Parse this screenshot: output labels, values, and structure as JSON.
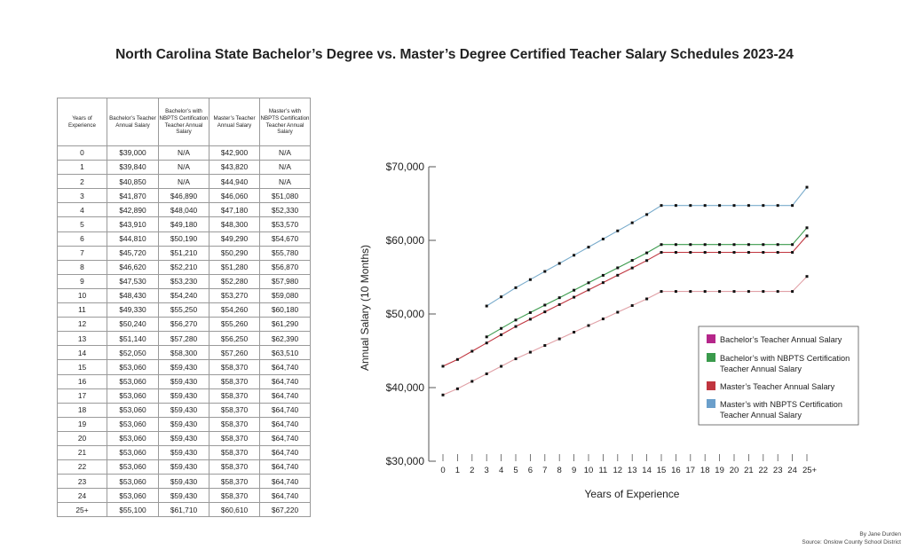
{
  "title": "North Carolina State Bachelor’s Degree vs.  Master’s Degree Certified Teacher Salary Schedules 2023-24",
  "table": {
    "headers": [
      "Years of Experience",
      "Bachelor’s Teacher Annual Salary",
      "Bachelor’s with NBPTS Certification Teacher Annual Salary",
      "Master’s Teacher Annual Salary",
      "Master’s with NBPTS Certification Teacher Annual Salary"
    ],
    "rows": [
      [
        "0",
        "$39,000",
        "N/A",
        "$42,900",
        "N/A"
      ],
      [
        "1",
        "$39,840",
        "N/A",
        "$43,820",
        "N/A"
      ],
      [
        "2",
        "$40,850",
        "N/A",
        "$44,940",
        "N/A"
      ],
      [
        "3",
        "$41,870",
        "$46,890",
        "$46,060",
        "$51,080"
      ],
      [
        "4",
        "$42,890",
        "$48,040",
        "$47,180",
        "$52,330"
      ],
      [
        "5",
        "$43,910",
        "$49,180",
        "$48,300",
        "$53,570"
      ],
      [
        "6",
        "$44,810",
        "$50,190",
        "$49,290",
        "$54,670"
      ],
      [
        "7",
        "$45,720",
        "$51,210",
        "$50,290",
        "$55,780"
      ],
      [
        "8",
        "$46,620",
        "$52,210",
        "$51,280",
        "$56,870"
      ],
      [
        "9",
        "$47,530",
        "$53,230",
        "$52,280",
        "$57,980"
      ],
      [
        "10",
        "$48,430",
        "$54,240",
        "$53,270",
        "$59,080"
      ],
      [
        "11",
        "$49,330",
        "$55,250",
        "$54,260",
        "$60,180"
      ],
      [
        "12",
        "$50,240",
        "$56,270",
        "$55,260",
        "$61,290"
      ],
      [
        "13",
        "$51,140",
        "$57,280",
        "$56,250",
        "$62,390"
      ],
      [
        "14",
        "$52,050",
        "$58,300",
        "$57,260",
        "$63,510"
      ],
      [
        "15",
        "$53,060",
        "$59,430",
        "$58,370",
        "$64,740"
      ],
      [
        "16",
        "$53,060",
        "$59,430",
        "$58,370",
        "$64,740"
      ],
      [
        "17",
        "$53,060",
        "$59,430",
        "$58,370",
        "$64,740"
      ],
      [
        "18",
        "$53,060",
        "$59,430",
        "$58,370",
        "$64,740"
      ],
      [
        "19",
        "$53,060",
        "$59,430",
        "$58,370",
        "$64,740"
      ],
      [
        "20",
        "$53,060",
        "$59,430",
        "$58,370",
        "$64,740"
      ],
      [
        "21",
        "$53,060",
        "$59,430",
        "$58,370",
        "$64,740"
      ],
      [
        "22",
        "$53,060",
        "$59,430",
        "$58,370",
        "$64,740"
      ],
      [
        "23",
        "$53,060",
        "$59,430",
        "$58,370",
        "$64,740"
      ],
      [
        "24",
        "$53,060",
        "$59,430",
        "$58,370",
        "$64,740"
      ],
      [
        "25+",
        "$55,100",
        "$61,710",
        "$60,610",
        "$67,220"
      ]
    ]
  },
  "chart_data": {
    "type": "line",
    "xlabel": "Years of Experience",
    "ylabel": "Annual Salary (10 Months)",
    "x": [
      "0",
      "1",
      "2",
      "3",
      "4",
      "5",
      "6",
      "7",
      "8",
      "9",
      "10",
      "11",
      "12",
      "13",
      "14",
      "15",
      "16",
      "17",
      "18",
      "19",
      "20",
      "21",
      "22",
      "23",
      "24",
      "25+"
    ],
    "ylim": [
      30000,
      70000
    ],
    "yticks": [
      30000,
      40000,
      50000,
      60000,
      70000
    ],
    "ytick_labels": [
      "$30,000",
      "$40,000",
      "$50,000",
      "$60,000",
      "$70,000"
    ],
    "series": [
      {
        "name": "Bachelor’s Teacher Annual Salary",
        "line_color": "#e0a0a6",
        "legend_color": "#b5268a",
        "values": [
          39000,
          39840,
          40850,
          41870,
          42890,
          43910,
          44810,
          45720,
          46620,
          47530,
          48430,
          49330,
          50240,
          51140,
          52050,
          53060,
          53060,
          53060,
          53060,
          53060,
          53060,
          53060,
          53060,
          53060,
          53060,
          55100
        ]
      },
      {
        "name": "Bachelor’s with NBPTS Certification Teacher Annual Salary",
        "line_color": "#3a9a4c",
        "legend_color": "#3a9a4c",
        "values": [
          null,
          null,
          null,
          46890,
          48040,
          49180,
          50190,
          51210,
          52210,
          53230,
          54240,
          55250,
          56270,
          57280,
          58300,
          59430,
          59430,
          59430,
          59430,
          59430,
          59430,
          59430,
          59430,
          59430,
          59430,
          61710
        ]
      },
      {
        "name": "Master’s Teacher Annual Salary",
        "line_color": "#c0353f",
        "legend_color": "#c0353f",
        "values": [
          42900,
          43820,
          44940,
          46060,
          47180,
          48300,
          49290,
          50290,
          51280,
          52280,
          53270,
          54260,
          55260,
          56250,
          57260,
          58370,
          58370,
          58370,
          58370,
          58370,
          58370,
          58370,
          58370,
          58370,
          58370,
          60610
        ]
      },
      {
        "name": "Master’s with NBPTS Certification Teacher Annual Salary",
        "line_color": "#7aaccc",
        "legend_color": "#6b9fcb",
        "values": [
          null,
          null,
          null,
          51080,
          52330,
          53570,
          54670,
          55780,
          56870,
          57980,
          59080,
          60180,
          61290,
          62390,
          63510,
          64740,
          64740,
          64740,
          64740,
          64740,
          64740,
          64740,
          64740,
          64740,
          64740,
          67220
        ]
      }
    ],
    "legend_position": "right"
  },
  "credits": {
    "author": "By Jane Durden",
    "source": "Source: Onslow County School District"
  }
}
